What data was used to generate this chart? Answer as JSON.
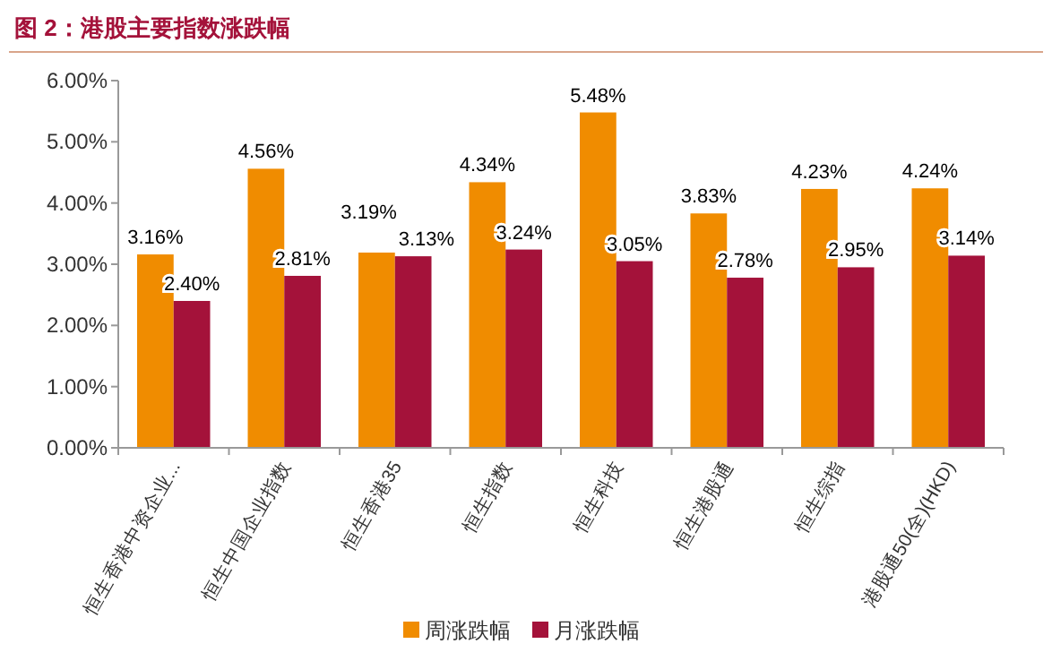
{
  "chart_data": {
    "type": "bar",
    "title": "图 2：港股主要指数涨跌幅",
    "categories": [
      "恒生香港中资企业...",
      "恒生中国企业指数",
      "恒生香港35",
      "恒生指数",
      "恒生科技",
      "恒生港股通",
      "恒生综指",
      "港股通50(全)(HKD)"
    ],
    "series": [
      {
        "name": "周涨跌幅",
        "color": "#f08c00",
        "values": [
          3.16,
          4.56,
          3.19,
          4.34,
          5.48,
          3.83,
          4.23,
          4.24
        ],
        "value_labels": [
          "3.16%",
          "4.56%",
          "3.19%",
          "4.34%",
          "5.48%",
          "3.83%",
          "4.23%",
          "4.24%"
        ]
      },
      {
        "name": "月涨跌幅",
        "color": "#a4123a",
        "values": [
          2.4,
          2.81,
          3.13,
          3.24,
          3.05,
          2.78,
          2.95,
          3.14
        ],
        "value_labels": [
          "2.40%",
          "2.81%",
          "3.13%",
          "3.24%",
          "3.05%",
          "2.78%",
          "2.95%",
          "3.14%"
        ]
      }
    ],
    "ylim": [
      0,
      6
    ],
    "yticks": [
      {
        "value": 0,
        "label": "0.00%"
      },
      {
        "value": 1,
        "label": "1.00%"
      },
      {
        "value": 2,
        "label": "2.00%"
      },
      {
        "value": 3,
        "label": "3.00%"
      },
      {
        "value": 4,
        "label": "4.00%"
      },
      {
        "value": 5,
        "label": "5.00%"
      },
      {
        "value": 6,
        "label": "6.00%"
      }
    ],
    "grid": false,
    "legend": "bottom"
  }
}
